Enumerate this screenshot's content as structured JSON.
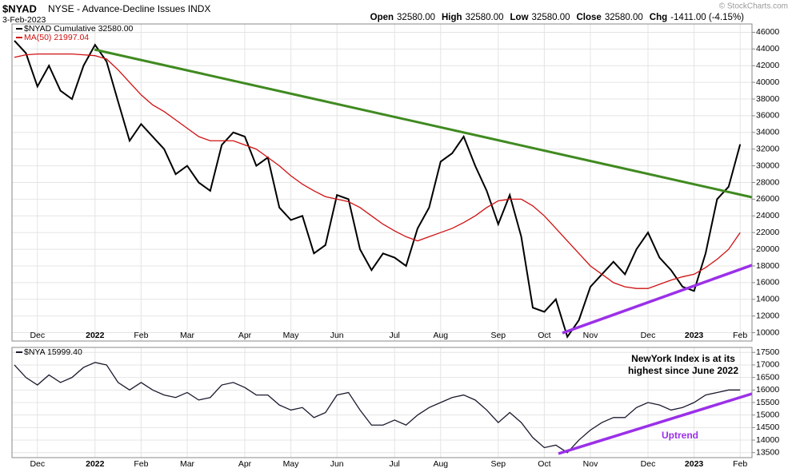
{
  "header": {
    "symbol": "$NYAD",
    "description": "NYSE - Advance-Decline Issues INDX",
    "date": "3-Feb-2023",
    "copyright": "© StockCharts.com",
    "quote": [
      {
        "label": "Open",
        "value": "32580.00"
      },
      {
        "label": "High",
        "value": "32580.00"
      },
      {
        "label": "Low",
        "value": "32580.00"
      },
      {
        "label": "Close",
        "value": "32580.00"
      },
      {
        "label": "Chg",
        "value": "-1411.00 (-4.15%)"
      }
    ]
  },
  "chart_data": [
    {
      "type": "line",
      "categories": [
        null,
        null,
        "Dec",
        null,
        null,
        null,
        null,
        "2022",
        null,
        null,
        null,
        "Feb",
        null,
        null,
        null,
        "Mar",
        null,
        null,
        null,
        null,
        "Apr",
        null,
        null,
        null,
        "May",
        null,
        null,
        null,
        "Jun",
        null,
        null,
        null,
        null,
        "Jul",
        null,
        null,
        null,
        "Aug",
        null,
        null,
        null,
        null,
        "Sep",
        null,
        null,
        null,
        "Oct",
        null,
        null,
        null,
        "Nov",
        null,
        null,
        null,
        null,
        "Dec",
        null,
        null,
        null,
        "2023",
        null,
        null,
        null,
        "Feb"
      ],
      "series": [
        {
          "name": "$NYAD Cumulative 32580.00",
          "color": "#000000",
          "values": [
            45000,
            43500,
            39500,
            42000,
            39000,
            38000,
            42000,
            44500,
            42500,
            37700,
            33000,
            35000,
            33500,
            32000,
            29000,
            30000,
            28000,
            27000,
            32500,
            34000,
            33500,
            30000,
            31000,
            25000,
            23500,
            24000,
            19500,
            20500,
            26500,
            26000,
            20000,
            17500,
            19500,
            19000,
            18000,
            22500,
            25000,
            30500,
            31500,
            33500,
            30000,
            27000,
            23000,
            26500,
            21500,
            13000,
            12500,
            14000,
            9500,
            11500,
            15500,
            17000,
            18500,
            17000,
            20000,
            22000,
            19000,
            17500,
            15500,
            15000,
            19500,
            26000,
            27500,
            32580
          ]
        },
        {
          "name": "MA(50) 21997.04",
          "color": "#d01010",
          "values": [
            43000,
            43300,
            43400,
            43400,
            43400,
            43400,
            43300,
            43200,
            42800,
            41500,
            40000,
            38500,
            37300,
            36500,
            35500,
            34500,
            33500,
            33000,
            33000,
            33000,
            32500,
            32000,
            31000,
            30000,
            28800,
            27800,
            27000,
            26300,
            26000,
            25700,
            25000,
            24000,
            23000,
            22200,
            21500,
            21000,
            21500,
            22000,
            22500,
            23200,
            24000,
            25000,
            25800,
            26000,
            26000,
            25200,
            24000,
            22500,
            21000,
            19500,
            18000,
            17000,
            16000,
            15500,
            15300,
            15300,
            15800,
            16300,
            16700,
            17000,
            17800,
            18800,
            20000,
            21997.04
          ]
        }
      ],
      "ylim": [
        9000,
        47000
      ],
      "yticks": [
        10000,
        12000,
        14000,
        16000,
        18000,
        20000,
        22000,
        24000,
        26000,
        28000,
        30000,
        32000,
        34000,
        36000,
        38000,
        40000,
        42000,
        44000,
        46000
      ],
      "grid": true
    },
    {
      "type": "line",
      "categories": [
        null,
        null,
        "Dec",
        null,
        null,
        null,
        null,
        "2022",
        null,
        null,
        null,
        "Feb",
        null,
        null,
        null,
        "Mar",
        null,
        null,
        null,
        null,
        "Apr",
        null,
        null,
        null,
        "May",
        null,
        null,
        null,
        "Jun",
        null,
        null,
        null,
        null,
        "Jul",
        null,
        null,
        null,
        "Aug",
        null,
        null,
        null,
        null,
        "Sep",
        null,
        null,
        null,
        "Oct",
        null,
        null,
        null,
        "Nov",
        null,
        null,
        null,
        null,
        "Dec",
        null,
        null,
        null,
        "2023",
        null,
        null,
        null,
        "Feb"
      ],
      "series": [
        {
          "name": "$NYA 15999.40",
          "color": "#1a1a2e",
          "values": [
            17000,
            16500,
            16200,
            16600,
            16300,
            16500,
            16900,
            17100,
            17000,
            16300,
            16000,
            16300,
            16000,
            15800,
            15700,
            15900,
            15600,
            15700,
            16200,
            16300,
            16100,
            15800,
            15800,
            15400,
            15200,
            15300,
            14900,
            15100,
            15800,
            15900,
            15200,
            14600,
            14600,
            14800,
            14600,
            15000,
            15300,
            15500,
            15700,
            15800,
            15600,
            15200,
            14700,
            15100,
            14700,
            14100,
            13700,
            13800,
            13500,
            14000,
            14400,
            14700,
            14900,
            14900,
            15300,
            15500,
            15400,
            15200,
            15300,
            15500,
            15800,
            15900,
            16000,
            15999.4
          ]
        }
      ],
      "annotations": [
        "NewYork Index is at its",
        "highest since June 2022",
        "Uptrend"
      ],
      "ylim": [
        13300,
        17700
      ],
      "yticks": [
        13500,
        14000,
        14500,
        15000,
        15500,
        16000,
        16500,
        17000,
        17500
      ],
      "grid": true
    }
  ]
}
